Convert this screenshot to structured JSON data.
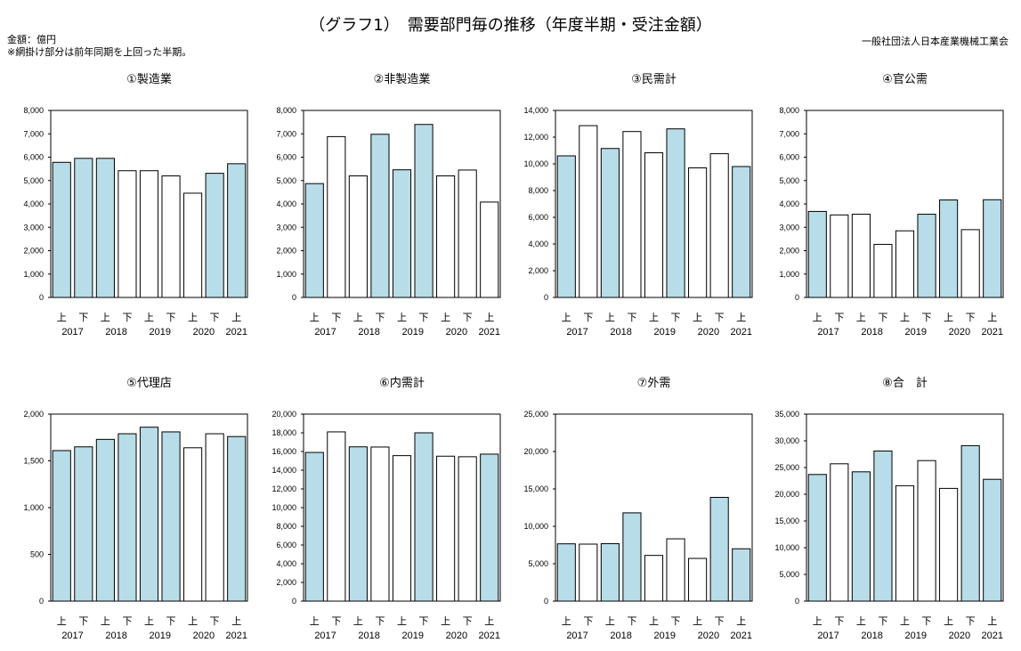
{
  "header": {
    "title": "（グラフ1）　需要部門毎の推移（年度半期・受注金額）",
    "unit": "金額：億円",
    "note": "※網掛け部分は前年同期を上回った半期。",
    "org": "一般社団法人日本産業機械工業会"
  },
  "colors": {
    "shaded": "#b7dde8",
    "plain": "#ffffff",
    "stroke": "#000000"
  },
  "chart_data": [
    {
      "type": "bar",
      "title": "①製造業",
      "categories": [
        "上",
        "下",
        "上",
        "下",
        "上",
        "下",
        "上",
        "下",
        "上"
      ],
      "year_labels": [
        "2017",
        "2018",
        "2019",
        "2020",
        "2021"
      ],
      "values": [
        5780,
        5950,
        5950,
        5420,
        5420,
        5200,
        4460,
        5310,
        5720
      ],
      "shaded": [
        true,
        true,
        true,
        false,
        false,
        false,
        false,
        true,
        true
      ],
      "ylim": [
        0,
        8000
      ],
      "yticks": [
        "0",
        "1,000",
        "2,000",
        "3,000",
        "4,000",
        "5,000",
        "6,000",
        "7,000",
        "8,000"
      ]
    },
    {
      "type": "bar",
      "title": "②非製造業",
      "categories": [
        "上",
        "下",
        "上",
        "下",
        "上",
        "下",
        "上",
        "下",
        "上"
      ],
      "year_labels": [
        "2017",
        "2018",
        "2019",
        "2020",
        "2021"
      ],
      "values": [
        4870,
        6880,
        5200,
        6980,
        5460,
        7400,
        5200,
        5450,
        4080
      ],
      "shaded": [
        true,
        false,
        false,
        true,
        true,
        true,
        false,
        false,
        false
      ],
      "ylim": [
        0,
        8000
      ],
      "yticks": [
        "0",
        "1,000",
        "2,000",
        "3,000",
        "4,000",
        "5,000",
        "6,000",
        "7,000",
        "8,000"
      ]
    },
    {
      "type": "bar",
      "title": "③民需計",
      "categories": [
        "上",
        "下",
        "上",
        "下",
        "上",
        "下",
        "上",
        "下",
        "上"
      ],
      "year_labels": [
        "2017",
        "2018",
        "2019",
        "2020",
        "2021"
      ],
      "values": [
        10600,
        12860,
        11150,
        12420,
        10830,
        12620,
        9700,
        10760,
        9800
      ],
      "shaded": [
        true,
        false,
        true,
        false,
        false,
        true,
        false,
        false,
        true
      ],
      "ylim": [
        0,
        14000
      ],
      "yticks": [
        "0",
        "2,000",
        "4,000",
        "6,000",
        "8,000",
        "10,000",
        "12,000",
        "14,000"
      ]
    },
    {
      "type": "bar",
      "title": "④官公需",
      "categories": [
        "上",
        "下",
        "上",
        "下",
        "上",
        "下",
        "上",
        "下",
        "上"
      ],
      "year_labels": [
        "2017",
        "2018",
        "2019",
        "2020",
        "2021"
      ],
      "values": [
        3680,
        3530,
        3560,
        2270,
        2850,
        3560,
        4170,
        2900,
        4180
      ],
      "shaded": [
        true,
        false,
        false,
        false,
        false,
        true,
        true,
        false,
        true
      ],
      "ylim": [
        0,
        8000
      ],
      "yticks": [
        "0",
        "1,000",
        "2,000",
        "3,000",
        "4,000",
        "5,000",
        "6,000",
        "7,000",
        "8,000"
      ]
    },
    {
      "type": "bar",
      "title": "⑤代理店",
      "categories": [
        "上",
        "下",
        "上",
        "下",
        "上",
        "下",
        "上",
        "下",
        "上"
      ],
      "year_labels": [
        "2017",
        "2018",
        "2019",
        "2020",
        "2021"
      ],
      "values": [
        1610,
        1650,
        1730,
        1790,
        1860,
        1810,
        1640,
        1790,
        1760
      ],
      "shaded": [
        true,
        true,
        true,
        true,
        true,
        true,
        false,
        false,
        true
      ],
      "ylim": [
        0,
        2000
      ],
      "yticks": [
        "0",
        "500",
        "1,000",
        "1,500",
        "2,000"
      ]
    },
    {
      "type": "bar",
      "title": "⑥内需計",
      "categories": [
        "上",
        "下",
        "上",
        "下",
        "上",
        "下",
        "上",
        "下",
        "上"
      ],
      "year_labels": [
        "2017",
        "2018",
        "2019",
        "2020",
        "2021"
      ],
      "values": [
        15900,
        18100,
        16500,
        16480,
        15560,
        18000,
        15500,
        15440,
        15720
      ],
      "shaded": [
        true,
        false,
        true,
        false,
        false,
        true,
        false,
        false,
        true
      ],
      "ylim": [
        0,
        20000
      ],
      "yticks": [
        "0",
        "2,000",
        "4,000",
        "6,000",
        "8,000",
        "10,000",
        "12,000",
        "14,000",
        "16,000",
        "18,000",
        "20,000"
      ]
    },
    {
      "type": "bar",
      "title": "⑦外需",
      "categories": [
        "上",
        "下",
        "上",
        "下",
        "上",
        "下",
        "上",
        "下",
        "上"
      ],
      "year_labels": [
        "2017",
        "2018",
        "2019",
        "2020",
        "2021"
      ],
      "values": [
        7660,
        7620,
        7680,
        11800,
        6110,
        8330,
        5710,
        13870,
        7000
      ],
      "shaded": [
        true,
        false,
        true,
        true,
        false,
        false,
        false,
        true,
        true
      ],
      "ylim": [
        0,
        25000
      ],
      "yticks": [
        "0",
        "5,000",
        "10,000",
        "15,000",
        "20,000",
        "25,000"
      ]
    },
    {
      "type": "bar",
      "title": "⑧合　計",
      "categories": [
        "上",
        "下",
        "上",
        "下",
        "上",
        "下",
        "上",
        "下",
        "上"
      ],
      "year_labels": [
        "2017",
        "2018",
        "2019",
        "2020",
        "2021"
      ],
      "values": [
        23700,
        25700,
        24200,
        28100,
        21600,
        26300,
        21100,
        29100,
        22800
      ],
      "shaded": [
        true,
        false,
        true,
        true,
        false,
        false,
        false,
        true,
        true
      ],
      "ylim": [
        0,
        35000
      ],
      "yticks": [
        "0",
        "5,000",
        "10,000",
        "15,000",
        "20,000",
        "25,000",
        "30,000",
        "35,000"
      ]
    }
  ]
}
